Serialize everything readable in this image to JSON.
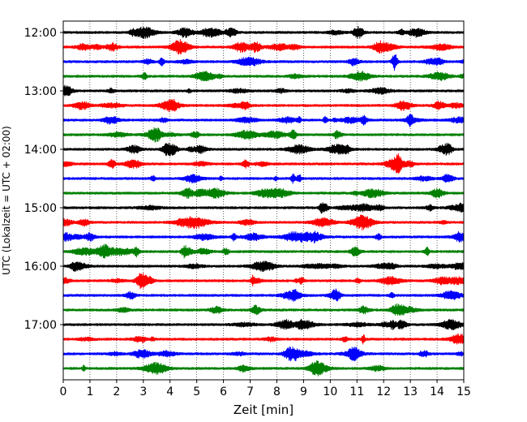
{
  "chart_data": {
    "type": "line",
    "title": "",
    "xlabel": "Zeit  [min]",
    "ylabel": "UTC (Lokalzeit = UTC + 02:00)",
    "xlim": [
      0,
      15
    ],
    "x_ticks": [
      "0",
      "1",
      "2",
      "3",
      "4",
      "5",
      "6",
      "7",
      "8",
      "9",
      "10",
      "11",
      "12",
      "13",
      "14",
      "15"
    ],
    "y_tick_labels": [
      "12:00",
      "13:00",
      "14:00",
      "15:00",
      "16:00",
      "17:00"
    ],
    "grid": "vertical dotted",
    "colors": [
      "#000000",
      "#ff0000",
      "#0000ff",
      "#008000"
    ],
    "rows": [
      {
        "time": "12:00",
        "color": "#000000"
      },
      {
        "time": "12:15",
        "color": "#ff0000"
      },
      {
        "time": "12:30",
        "color": "#0000ff"
      },
      {
        "time": "12:45",
        "color": "#008000"
      },
      {
        "time": "13:00",
        "color": "#000000"
      },
      {
        "time": "13:15",
        "color": "#ff0000"
      },
      {
        "time": "13:30",
        "color": "#0000ff"
      },
      {
        "time": "13:45",
        "color": "#008000"
      },
      {
        "time": "14:00",
        "color": "#000000"
      },
      {
        "time": "14:15",
        "color": "#ff0000"
      },
      {
        "time": "14:30",
        "color": "#0000ff"
      },
      {
        "time": "14:45",
        "color": "#008000"
      },
      {
        "time": "15:00",
        "color": "#000000"
      },
      {
        "time": "15:15",
        "color": "#ff0000"
      },
      {
        "time": "15:30",
        "color": "#0000ff"
      },
      {
        "time": "15:45",
        "color": "#008000"
      },
      {
        "time": "16:00",
        "color": "#000000"
      },
      {
        "time": "16:15",
        "color": "#ff0000"
      },
      {
        "time": "16:30",
        "color": "#0000ff"
      },
      {
        "time": "16:45",
        "color": "#008000"
      },
      {
        "time": "17:00",
        "color": "#000000"
      },
      {
        "time": "17:15",
        "color": "#ff0000"
      },
      {
        "time": "17:30",
        "color": "#0000ff"
      },
      {
        "time": "17:45",
        "color": "#008000"
      }
    ]
  }
}
